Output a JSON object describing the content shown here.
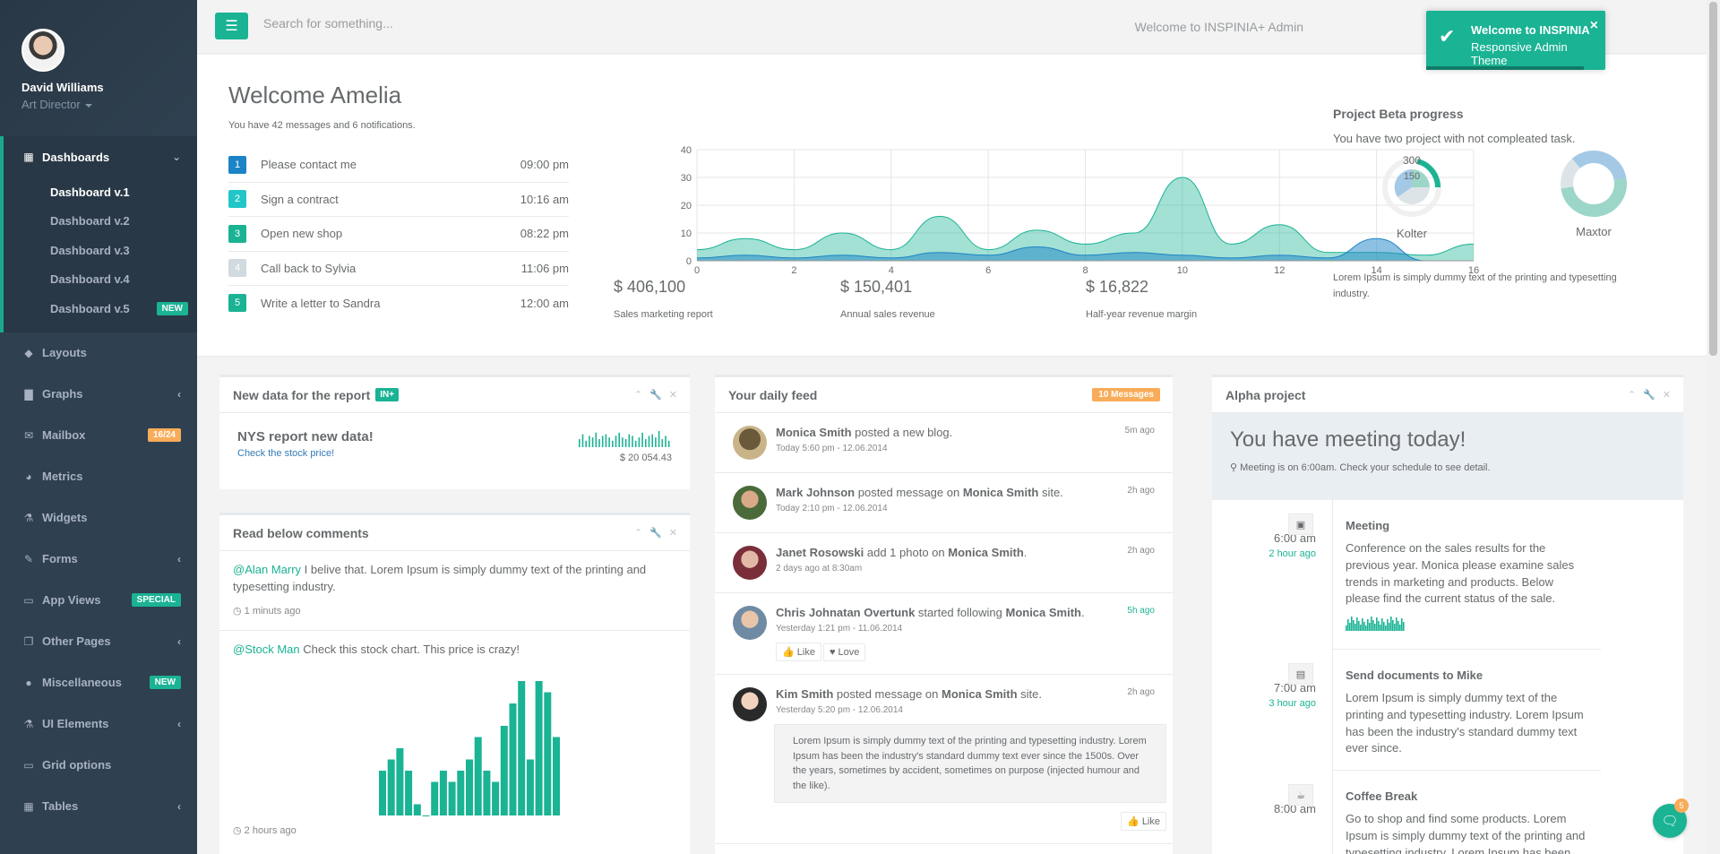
{
  "profile": {
    "name": "David Williams",
    "role": "Art Director"
  },
  "sidebar": {
    "dashboards": {
      "label": "Dashboards",
      "items": [
        {
          "label": "Dashboard v.1",
          "current": true
        },
        {
          "label": "Dashboard v.2"
        },
        {
          "label": "Dashboard v.3"
        },
        {
          "label": "Dashboard v.4"
        },
        {
          "label": "Dashboard v.5",
          "badge": "NEW"
        }
      ]
    },
    "items": [
      {
        "label": "Layouts",
        "icon": "diamond-icon"
      },
      {
        "label": "Graphs",
        "icon": "bar-chart-icon",
        "chevron": true
      },
      {
        "label": "Mailbox",
        "icon": "envelope-icon",
        "badge": "16/24",
        "badge_color": "#f8ac59"
      },
      {
        "label": "Metrics",
        "icon": "pie-chart-icon"
      },
      {
        "label": "Widgets",
        "icon": "flask-icon"
      },
      {
        "label": "Forms",
        "icon": "edit-icon",
        "chevron": true
      },
      {
        "label": "App Views",
        "icon": "desktop-icon",
        "badge": "SPECIAL",
        "badge_color": "#1ab394"
      },
      {
        "label": "Other Pages",
        "icon": "files-icon",
        "chevron": true
      },
      {
        "label": "Miscellaneous",
        "icon": "globe-icon",
        "badge": "NEW",
        "badge_color": "#1ab394"
      },
      {
        "label": "UI Elements",
        "icon": "flask-icon",
        "chevron": true
      },
      {
        "label": "Grid options",
        "icon": "laptop-icon"
      },
      {
        "label": "Tables",
        "icon": "table-icon",
        "chevron": true
      }
    ]
  },
  "topbar": {
    "search_placeholder": "Search for something...",
    "welcome": "Welcome to INSPINIA+ Admin"
  },
  "toast": {
    "title": "Welcome to INSPINIA",
    "message": "Responsive Admin Theme"
  },
  "welcome": {
    "title": "Welcome Amelia",
    "subtitle": "You have 42 messages and 6 notifications.",
    "todos": [
      {
        "num": "1",
        "color": "#1c84c6",
        "text": "Please contact me",
        "time": "09:00 pm"
      },
      {
        "num": "2",
        "color": "#23c6c8",
        "text": "Sign a contract",
        "time": "10:16 am"
      },
      {
        "num": "3",
        "color": "#1ab394",
        "text": "Open new shop",
        "time": "08:22 pm"
      },
      {
        "num": "4",
        "color": "#d1dade",
        "text": "Call back to Sylvia",
        "time": "11:06 pm"
      },
      {
        "num": "5",
        "color": "#1ab394",
        "text": "Write a letter to Sandra",
        "time": "12:00 am"
      }
    ]
  },
  "kpis": [
    {
      "value": "$ 406,100",
      "label": "Sales marketing report"
    },
    {
      "value": "$ 150,401",
      "label": "Annual sales revenue"
    },
    {
      "value": "$ 16,822",
      "label": "Half-year revenue margin"
    }
  ],
  "chart_data": {
    "type": "area",
    "x": [
      0,
      1,
      2,
      3,
      4,
      5,
      6,
      7,
      8,
      9,
      10,
      11,
      12,
      13,
      14,
      15,
      16
    ],
    "xticks": [
      0,
      2,
      4,
      6,
      8,
      10,
      12,
      14,
      16
    ],
    "yticks": [
      0,
      10,
      20,
      30,
      40
    ],
    "ylim": [
      0,
      40
    ],
    "xlim": [
      0,
      16
    ],
    "series": [
      {
        "color": "#1ab394",
        "values": [
          4,
          8,
          4,
          10,
          4,
          16,
          4,
          11,
          6,
          10,
          30,
          6,
          13,
          3,
          3,
          2,
          6
        ]
      },
      {
        "color": "#1c84c6",
        "values": [
          1,
          2,
          1,
          2,
          1,
          3,
          2,
          5,
          2,
          3,
          2,
          1,
          2,
          1,
          8,
          0,
          0
        ]
      }
    ]
  },
  "project": {
    "title": "Project Beta progress",
    "subtitle": "You have two project with not compleated task.",
    "donut1": {
      "name": "Kolter",
      "label_a": "300",
      "label_b": "150"
    },
    "donut2": {
      "name": "Maxtor"
    },
    "description": "Lorem Ipsum is simply dummy text of the printing and typesetting industry."
  },
  "report": {
    "title": "New data for the report",
    "tag": "IN+",
    "headline": "NYS report new data!",
    "link": "Check the stock price!",
    "value": "$ 20 054.43",
    "spark": [
      5,
      8,
      4,
      7,
      6,
      9,
      5,
      7,
      8,
      6,
      4,
      7,
      9,
      6,
      5,
      8,
      7,
      4,
      6,
      9,
      5,
      7,
      8,
      6,
      10,
      5,
      7,
      4
    ]
  },
  "comments": {
    "title": "Read below comments",
    "items": [
      {
        "who": "@Alan Marry",
        "text": " I belive that. Lorem Ipsum is simply dummy text of the printing and typesetting industry.",
        "when": "1 minuts ago"
      },
      {
        "who": "@Stock Man",
        "text": " Check this stock chart. This price is crazy!",
        "when": "2 hours ago"
      }
    ],
    "bars": [
      4,
      5,
      6,
      4,
      1,
      0,
      3,
      4,
      3,
      4,
      5,
      7,
      4,
      3,
      8,
      10,
      12,
      5,
      12,
      11,
      7
    ]
  },
  "feed": {
    "title": "Your daily feed",
    "badge": "10 Messages",
    "items": [
      {
        "name": "Monica Smith",
        "action": " posted a new blog.",
        "target": "",
        "tail": "",
        "meta": "Today 5:60 pm - 12.06.2014",
        "ago": "5m ago"
      },
      {
        "name": "Mark Johnson",
        "action": " posted message on ",
        "target": "Monica Smith",
        "tail": " site.",
        "meta": "Today 2:10 pm - 12.06.2014",
        "ago": "2h ago"
      },
      {
        "name": "Janet Rosowski",
        "action": " add 1 photo on ",
        "target": "Monica Smith",
        "tail": ".",
        "meta": "2 days ago at 8:30am",
        "ago": "2h ago"
      },
      {
        "name": "Chris Johnatan Overtunk",
        "action": " started following ",
        "target": "Monica Smith",
        "tail": ".",
        "meta": "Yesterday 1:21 pm - 11.06.2014",
        "ago": "5h ago",
        "like": "Like",
        "love": "Love"
      },
      {
        "name": "Kim Smith",
        "action": " posted message on ",
        "target": "Monica Smith",
        "tail": " site.",
        "meta": "Yesterday 5:20 pm - 12.06.2014",
        "ago": "2h ago",
        "quote": "Lorem Ipsum is simply dummy text of the printing and typesetting industry. Lorem Ipsum has been the industry's standard dummy text ever since the 1500s. Over the years, sometimes by accident, sometimes on purpose (injected humour and the like).",
        "like": "Like"
      }
    ]
  },
  "alpha": {
    "title": "Alpha project",
    "hero_title": "You have meeting today!",
    "hero_sub": "Meeting is on 6:00am. Check your schedule to see detail.",
    "timeline": [
      {
        "time": "6:00 am",
        "ago": "2 hour ago",
        "title": "Meeting",
        "text": "Conference on the sales results for the previous year. Monica please examine sales trends in marketing and products. Below please find the current status of the sale.",
        "icon": "briefcase-icon"
      },
      {
        "time": "7:00 am",
        "ago": "3 hour ago",
        "title": "Send documents to Mike",
        "text": "Lorem Ipsum is simply dummy text of the printing and typesetting industry. Lorem Ipsum has been the industry's standard dummy text ever since.",
        "icon": "file-icon"
      },
      {
        "time": "8:00 am",
        "ago": "",
        "title": "Coffee Break",
        "text": "Go to shop and find some products. Lorem Ipsum is simply dummy text of the printing and typesetting industry. Lorem Ipsum has been the industry's.",
        "icon": "coffee-icon"
      }
    ]
  },
  "chat": {
    "badge": "5"
  }
}
